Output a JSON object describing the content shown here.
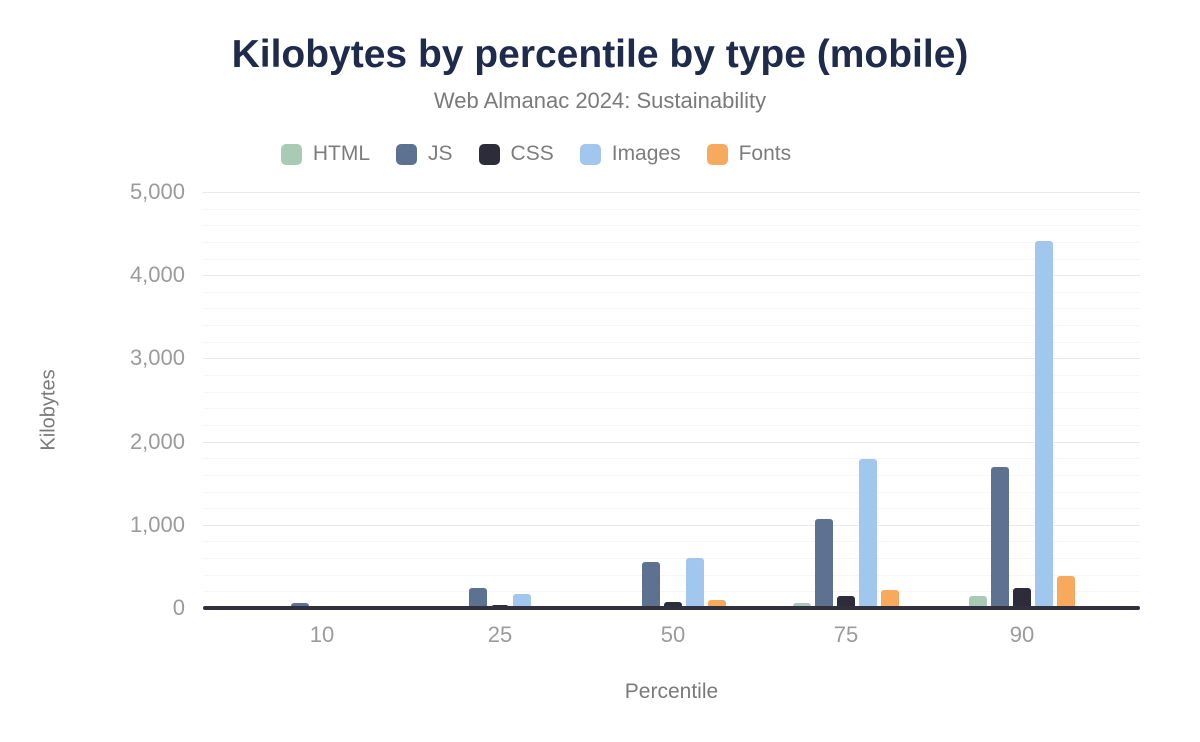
{
  "title": "Kilobytes by percentile by type (mobile)",
  "subtitle": "Web Almanac 2024: Sustainability",
  "chart_data": {
    "type": "bar",
    "title": "Kilobytes by percentile by type (mobile)",
    "subtitle": "Web Almanac 2024: Sustainability",
    "xlabel": "Percentile",
    "ylabel": "Kilobytes",
    "categories": [
      "10",
      "25",
      "50",
      "75",
      "90"
    ],
    "series": [
      {
        "name": "HTML",
        "color": "#a9cbb6",
        "values": [
          6,
          13,
          30,
          56,
          139
        ]
      },
      {
        "name": "JS",
        "color": "#5d7190",
        "values": [
          66,
          242,
          555,
          1070,
          1696
        ]
      },
      {
        "name": "CSS",
        "color": "#2c2c3b",
        "values": [
          4,
          34,
          73,
          150,
          240
        ]
      },
      {
        "name": "Images",
        "color": "#a2c7ee",
        "values": [
          28,
          164,
          604,
          1790,
          4412
        ]
      },
      {
        "name": "Fonts",
        "color": "#f7aa5e",
        "values": [
          1,
          28,
          93,
          214,
          382
        ]
      }
    ],
    "ylim": [
      0,
      5000
    ],
    "yticks": [
      "0",
      "1,000",
      "2,000",
      "3,000",
      "4,000",
      "5,000"
    ],
    "grid": {
      "major_step": 1000,
      "minor_step": 200,
      "grid_on": true
    },
    "legend_position": "top",
    "colors": {
      "title": "#1f2b4a",
      "subtitle": "#7a7a7a",
      "tick_label": "#9b9b9b",
      "axis_line": "#30303e",
      "major_grid": "#e9e9e9",
      "minor_grid": "#f6f6f6"
    }
  }
}
